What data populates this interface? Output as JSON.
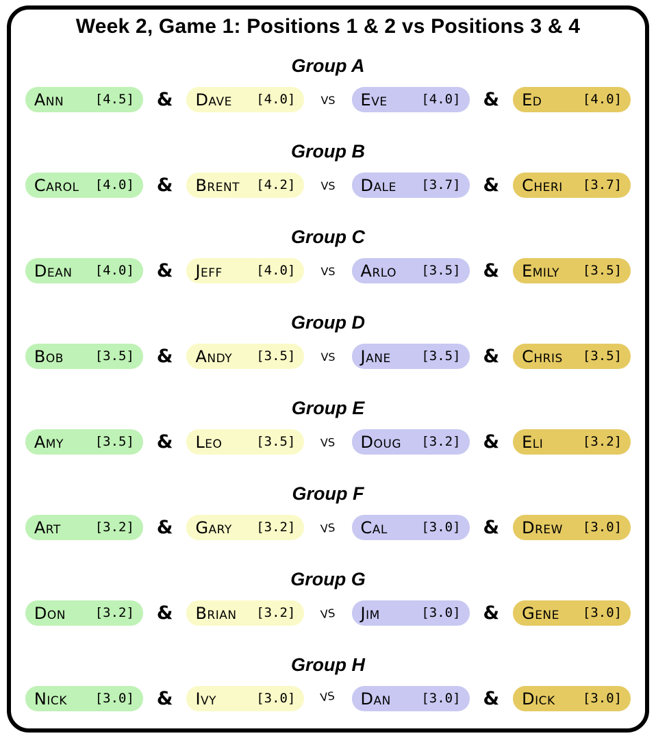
{
  "title": "Week 2, Game 1: Positions 1 & 2 vs Positions 3 & 4",
  "labels": {
    "and": "&",
    "vs": "vs"
  },
  "colors": {
    "position1": "#bff2b6",
    "position2": "#fafac8",
    "position3": "#c8c8f2",
    "position4": "#e5ca62",
    "border": "#000000",
    "background": "#ffffff",
    "text": "#000000"
  },
  "groups": [
    {
      "label": "Group A",
      "players": [
        {
          "name": "Ann",
          "rating": "[4.5]"
        },
        {
          "name": "Dave",
          "rating": "[4.0]"
        },
        {
          "name": "Eve",
          "rating": "[4.0]"
        },
        {
          "name": "Ed",
          "rating": "[4.0]"
        }
      ]
    },
    {
      "label": "Group B",
      "players": [
        {
          "name": "Carol",
          "rating": "[4.0]"
        },
        {
          "name": "Brent",
          "rating": "[4.2]"
        },
        {
          "name": "Dale",
          "rating": "[3.7]"
        },
        {
          "name": "Cheri",
          "rating": "[3.7]"
        }
      ]
    },
    {
      "label": "Group C",
      "players": [
        {
          "name": "Dean",
          "rating": "[4.0]"
        },
        {
          "name": "Jeff",
          "rating": "[4.0]"
        },
        {
          "name": "Arlo",
          "rating": "[3.5]"
        },
        {
          "name": "Emily",
          "rating": "[3.5]"
        }
      ]
    },
    {
      "label": "Group D",
      "players": [
        {
          "name": "Bob",
          "rating": "[3.5]"
        },
        {
          "name": "Andy",
          "rating": "[3.5]"
        },
        {
          "name": "Jane",
          "rating": "[3.5]"
        },
        {
          "name": "Chris",
          "rating": "[3.5]"
        }
      ]
    },
    {
      "label": "Group E",
      "players": [
        {
          "name": "Amy",
          "rating": "[3.5]"
        },
        {
          "name": "Leo",
          "rating": "[3.5]"
        },
        {
          "name": "Doug",
          "rating": "[3.2]"
        },
        {
          "name": "Eli",
          "rating": "[3.2]"
        }
      ]
    },
    {
      "label": "Group F",
      "players": [
        {
          "name": "Art",
          "rating": "[3.2]"
        },
        {
          "name": "Gary",
          "rating": "[3.2]"
        },
        {
          "name": "Cal",
          "rating": "[3.0]"
        },
        {
          "name": "Drew",
          "rating": "[3.0]"
        }
      ]
    },
    {
      "label": "Group G",
      "players": [
        {
          "name": "Don",
          "rating": "[3.2]"
        },
        {
          "name": "Brian",
          "rating": "[3.2]"
        },
        {
          "name": "Jim",
          "rating": "[3.0]"
        },
        {
          "name": "Gene",
          "rating": "[3.0]"
        }
      ]
    },
    {
      "label": "Group H",
      "players": [
        {
          "name": "Nick",
          "rating": "[3.0]"
        },
        {
          "name": "Ivy",
          "rating": "[3.0]"
        },
        {
          "name": "Dan",
          "rating": "[3.0]"
        },
        {
          "name": "Dick",
          "rating": "[3.0]"
        }
      ]
    }
  ]
}
